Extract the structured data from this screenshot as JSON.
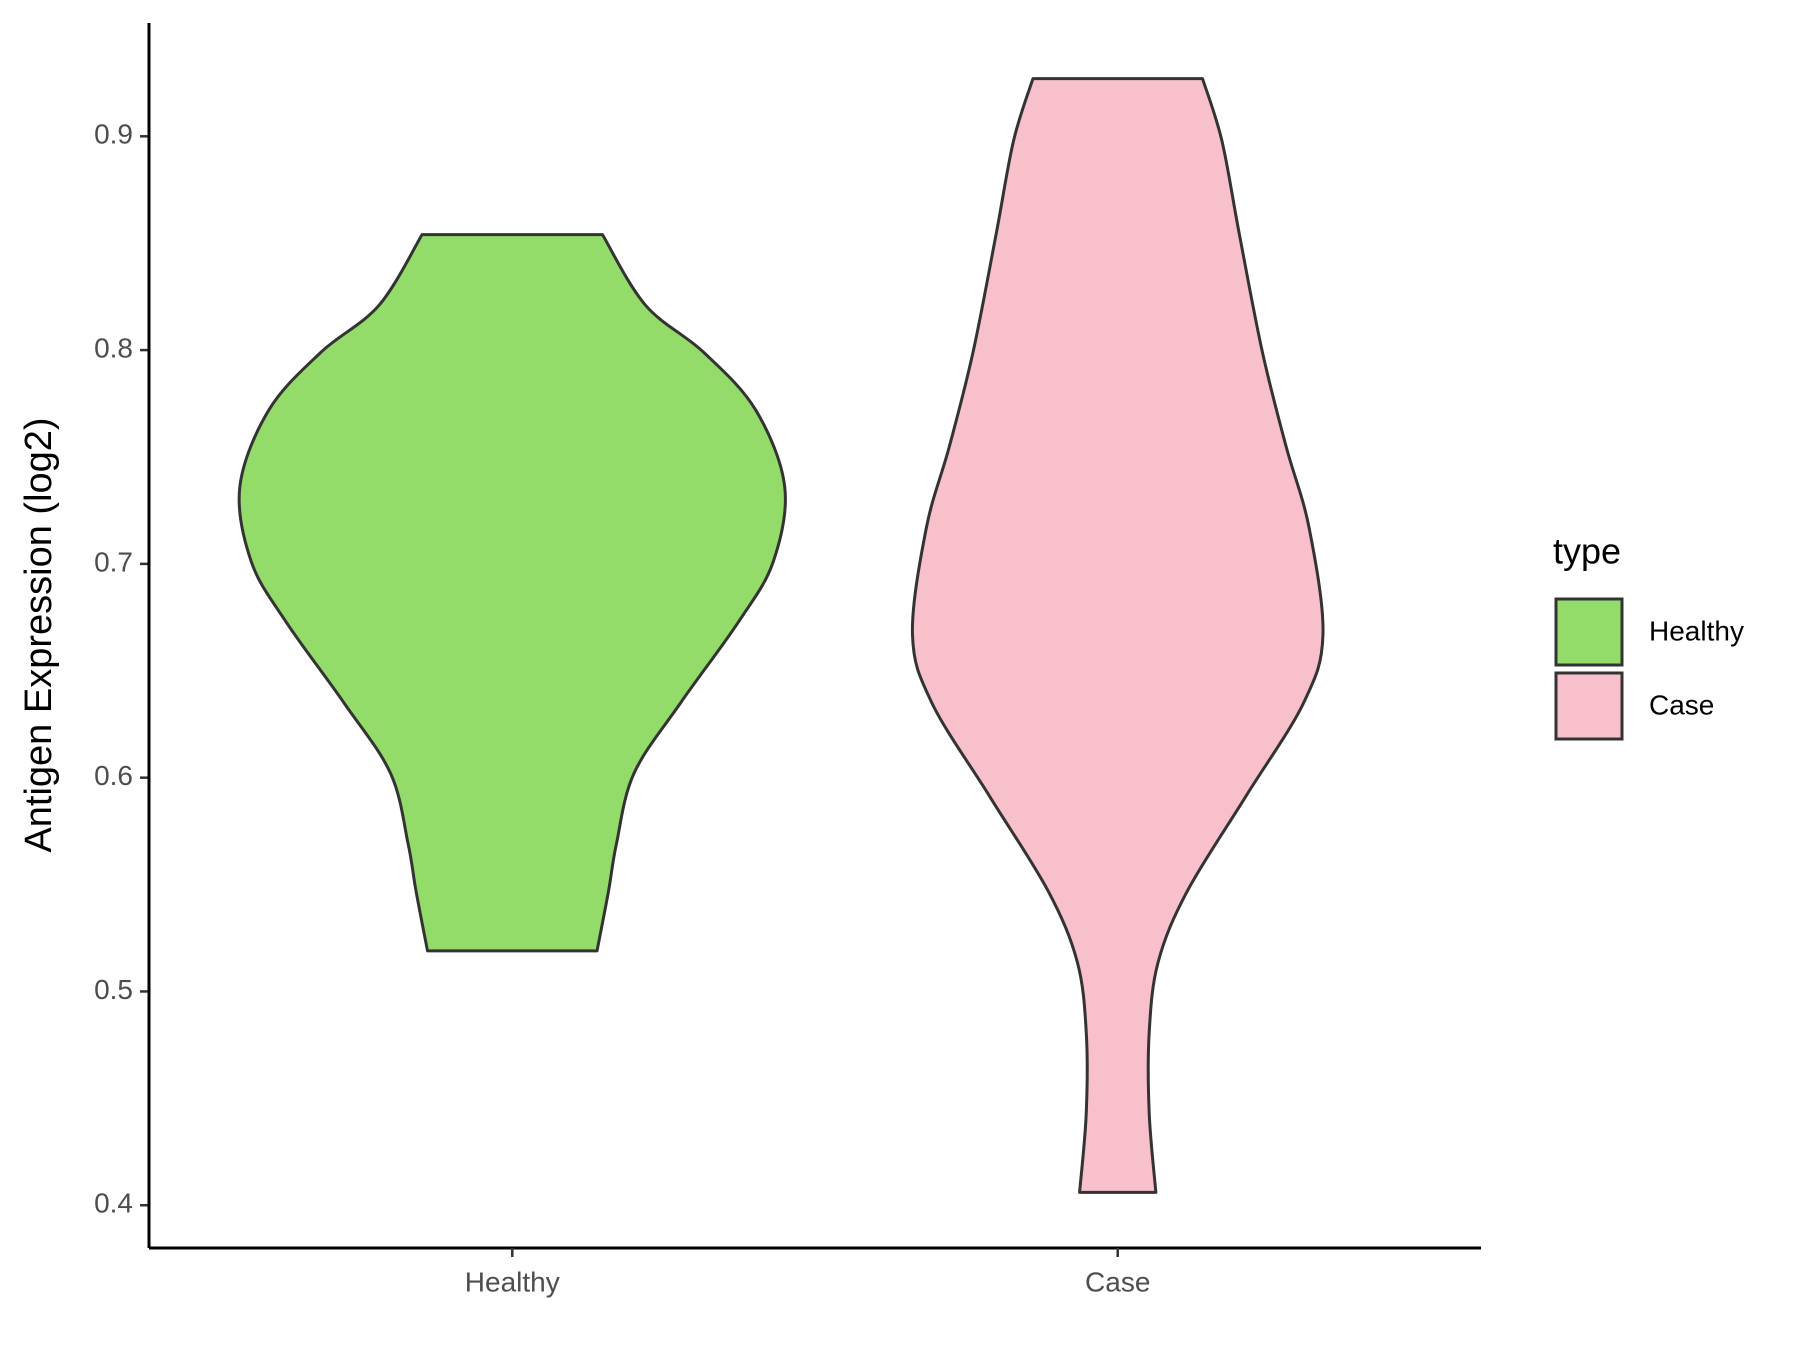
{
  "chart_data": {
    "type": "violin",
    "y_label": "Antigen Expression (log2)",
    "categories": [
      "Healthy",
      "Case"
    ],
    "legend_title": "type",
    "legend_position": "right",
    "ylim": [
      0.38,
      0.953
    ],
    "yticks": [
      0.4,
      0.5,
      0.6,
      0.7,
      0.8,
      0.9
    ],
    "grid": false,
    "series": [
      {
        "name": "Healthy",
        "color": "#93dc6a",
        "y": [
          0.854,
          0.821,
          0.799,
          0.772,
          0.736,
          0.701,
          0.673,
          0.635,
          0.602,
          0.569,
          0.547,
          0.519
        ],
        "width": [
          0.149,
          0.22,
          0.316,
          0.402,
          0.45,
          0.431,
          0.374,
          0.278,
          0.201,
          0.172,
          0.159,
          0.14
        ]
      },
      {
        "name": "Case",
        "color": "#f7c0cb",
        "y": [
          0.927,
          0.898,
          0.854,
          0.799,
          0.755,
          0.717,
          0.667,
          0.635,
          0.591,
          0.547,
          0.514,
          0.481,
          0.443,
          0.406
        ],
        "width": [
          0.14,
          0.172,
          0.201,
          0.239,
          0.278,
          0.316,
          0.339,
          0.307,
          0.211,
          0.115,
          0.067,
          0.052,
          0.052,
          0.063
        ]
      }
    ]
  }
}
